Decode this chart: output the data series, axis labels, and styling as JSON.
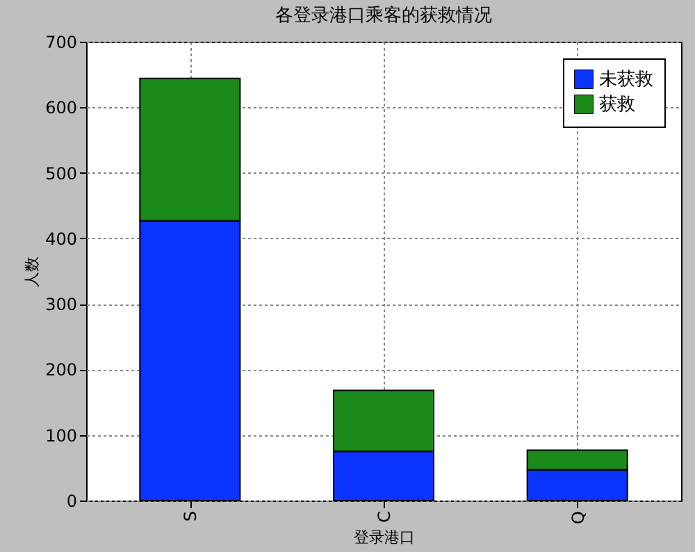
{
  "chart_data": {
    "type": "bar",
    "stacked": true,
    "title": "各登录港口乘客的获救情况",
    "xlabel": "登录港口",
    "ylabel": "人数",
    "categories": [
      "S",
      "C",
      "Q"
    ],
    "series": [
      {
        "name": "未获救",
        "color": "#0a33ff",
        "values": [
          427,
          75,
          47
        ]
      },
      {
        "name": "获救",
        "color": "#1a8a1a",
        "values": [
          217,
          93,
          30
        ]
      }
    ],
    "ylim": [
      0,
      700
    ],
    "yticks": [
      0,
      100,
      200,
      300,
      400,
      500,
      600,
      700
    ],
    "grid": true,
    "legend": "top right"
  }
}
